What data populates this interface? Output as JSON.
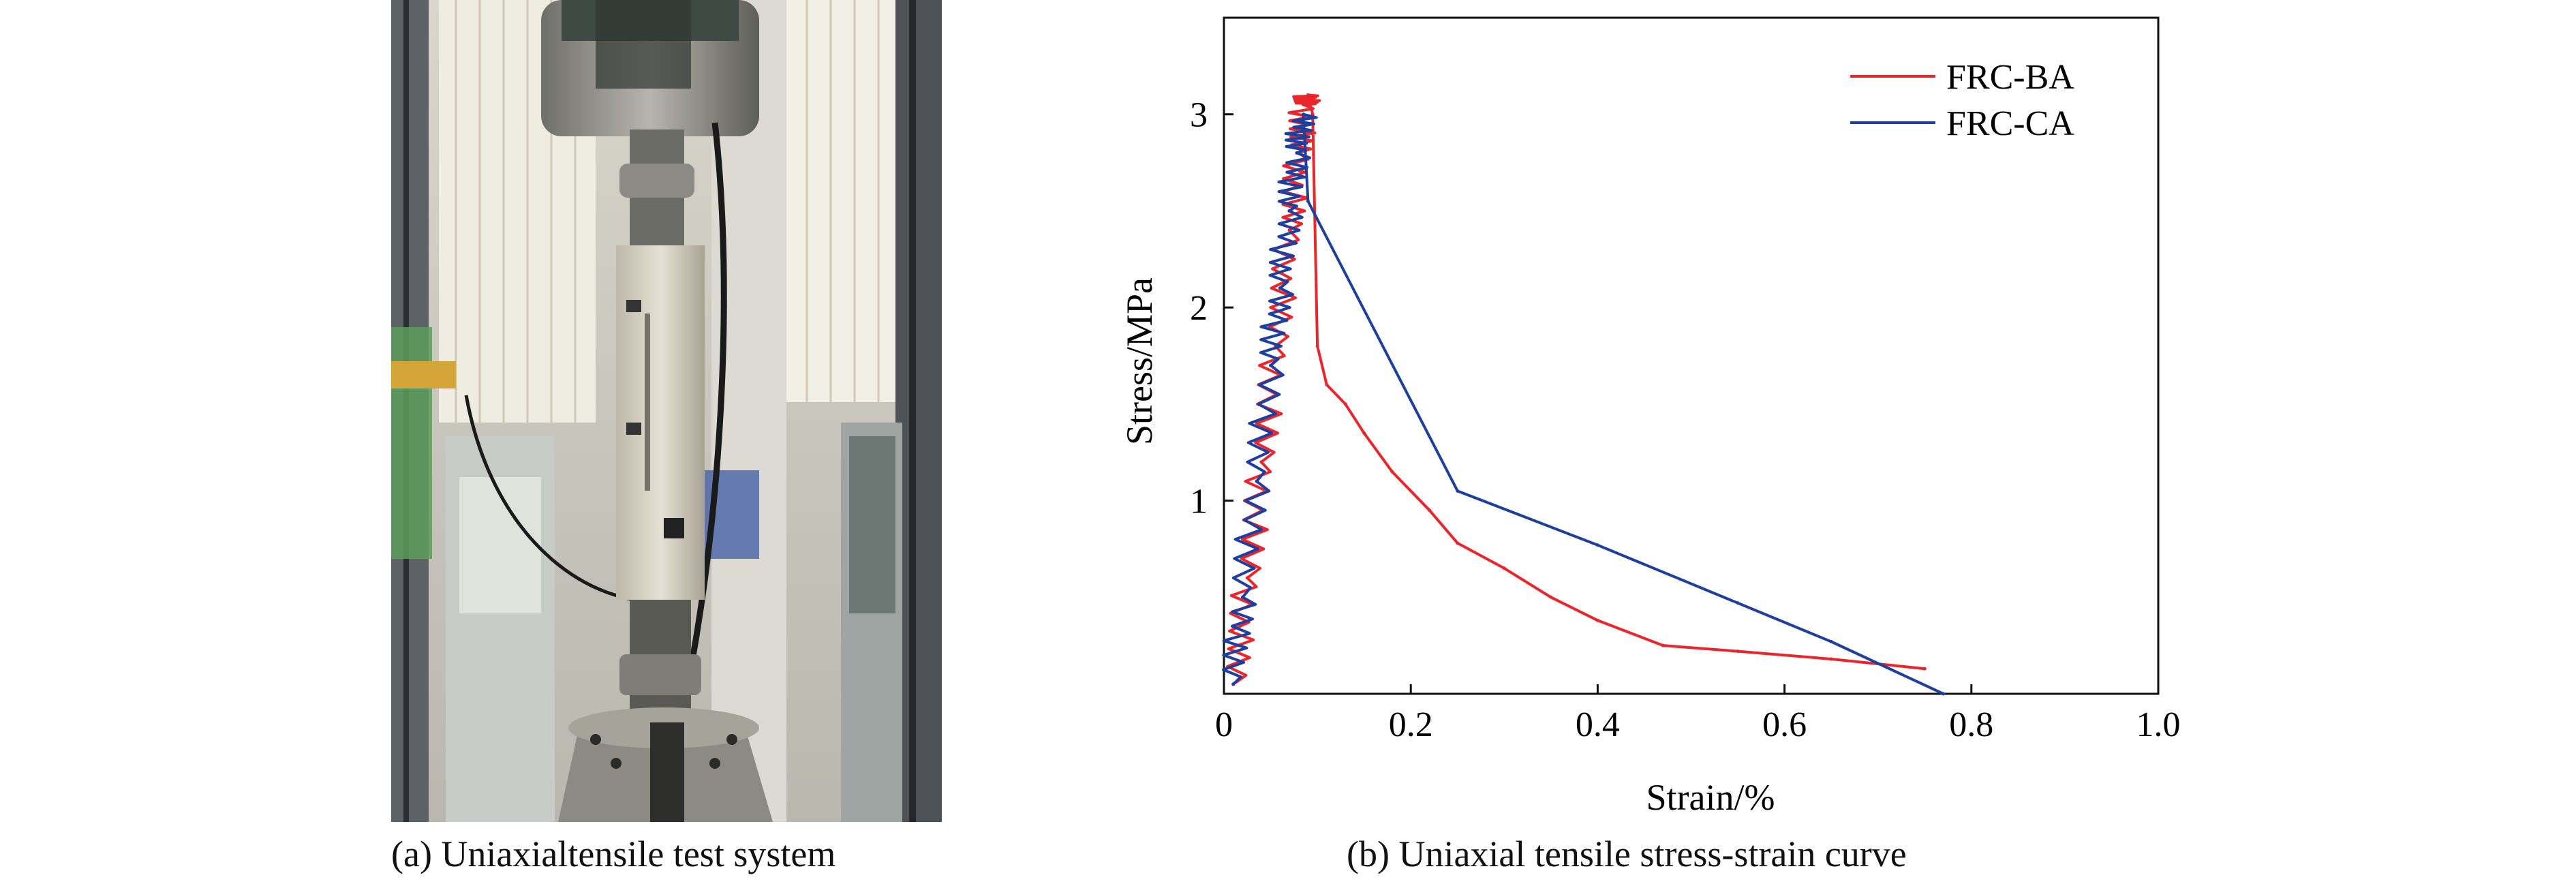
{
  "figure": {
    "caption_a": "(a) Uniaxialtensile test system",
    "caption_b": "(b) Uniaxial tensile stress-strain curve"
  },
  "chart_data": {
    "type": "line",
    "xlabel": "Strain/%",
    "ylabel": "Stress/MPa",
    "xlim": [
      0,
      1.0
    ],
    "ylim": [
      0,
      3.5
    ],
    "xticks": [
      "0",
      "0.2",
      "0.4",
      "0.6",
      "0.8",
      "1.0"
    ],
    "yticks": [
      "1",
      "2",
      "3"
    ],
    "grid": false,
    "legend_position": "top-right",
    "series": [
      {
        "name": "FRC-BA",
        "color": "#e8262b",
        "x": [
          0.01,
          0.025,
          0.04,
          0.055,
          0.07,
          0.08,
          0.085,
          0.09,
          0.095,
          0.1,
          0.11,
          0.13,
          0.15,
          0.18,
          0.22,
          0.25,
          0.3,
          0.35,
          0.4,
          0.47,
          0.55,
          0.65,
          0.75
        ],
        "y": [
          0.05,
          0.6,
          1.2,
          1.8,
          2.4,
          2.8,
          3.05,
          3.1,
          3.0,
          1.8,
          1.6,
          1.5,
          1.35,
          1.15,
          0.95,
          0.78,
          0.65,
          0.5,
          0.38,
          0.25,
          0.22,
          0.18,
          0.13
        ]
      },
      {
        "name": "FRC-CA",
        "color": "#1f3f9e",
        "x": [
          0.01,
          0.02,
          0.035,
          0.05,
          0.06,
          0.07,
          0.078,
          0.085,
          0.09,
          0.25,
          0.4,
          0.55,
          0.65,
          0.77
        ],
        "y": [
          0.05,
          0.5,
          1.1,
          1.7,
          2.1,
          2.5,
          2.8,
          3.0,
          2.55,
          1.05,
          0.77,
          0.47,
          0.27,
          0.0
        ]
      }
    ]
  }
}
